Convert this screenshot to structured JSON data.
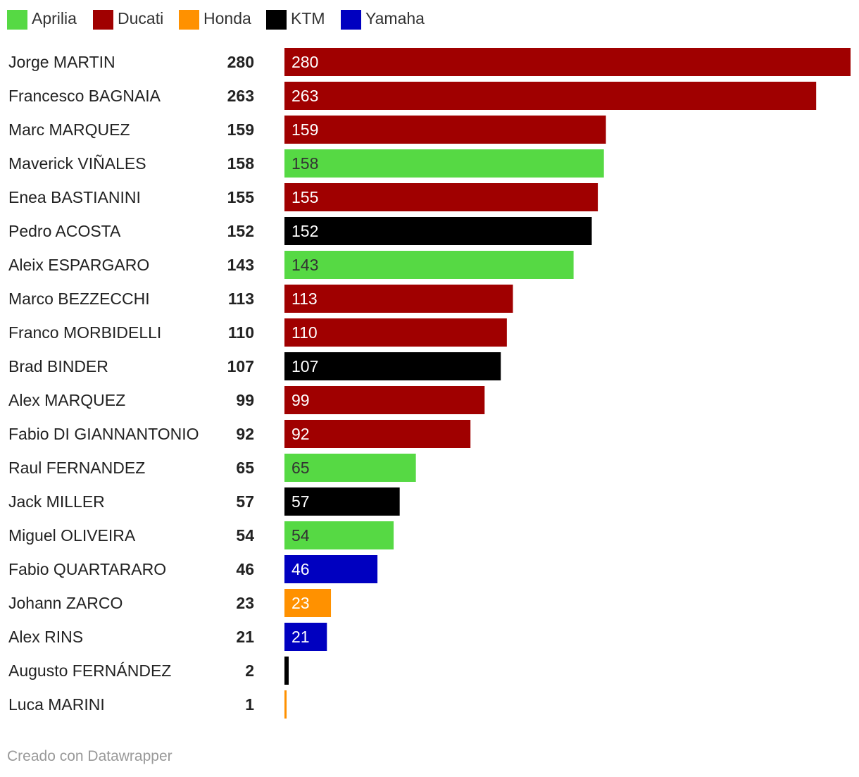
{
  "chart_data": {
    "type": "bar",
    "orientation": "horizontal",
    "legend_position": "top-left",
    "legend": [
      {
        "name": "Aprilia",
        "color": "#56d944"
      },
      {
        "name": "Ducati",
        "color": "#a00000"
      },
      {
        "name": "Honda",
        "color": "#ff9100"
      },
      {
        "name": "KTM",
        "color": "#000000"
      },
      {
        "name": "Yamaha",
        "color": "#0000c0"
      }
    ],
    "categories": [
      "Jorge MARTIN",
      "Francesco BAGNAIA",
      "Marc MARQUEZ",
      "Maverick VIÑALES",
      "Enea BASTIANINI",
      "Pedro ACOSTA",
      "Aleix ESPARGARO",
      "Marco BEZZECCHI",
      "Franco MORBIDELLI",
      "Brad BINDER",
      "Alex MARQUEZ",
      "Fabio DI GIANNANTONIO",
      "Raul FERNANDEZ",
      "Jack MILLER",
      "Miguel OLIVEIRA",
      "Fabio QUARTARARO",
      "Johann ZARCO",
      "Alex RINS",
      "Augusto FERNÁNDEZ",
      "Luca MARINI"
    ],
    "values": [
      280,
      263,
      159,
      158,
      155,
      152,
      143,
      113,
      110,
      107,
      99,
      92,
      65,
      57,
      54,
      46,
      23,
      21,
      2,
      1
    ],
    "teams": [
      "Ducati",
      "Ducati",
      "Ducati",
      "Aprilia",
      "Ducati",
      "KTM",
      "Aprilia",
      "Ducati",
      "Ducati",
      "KTM",
      "Ducati",
      "Ducati",
      "Aprilia",
      "KTM",
      "Aprilia",
      "Yamaha",
      "Honda",
      "Yamaha",
      "KTM",
      "Honda"
    ],
    "xlim": [
      0,
      280
    ],
    "grid": false
  },
  "footer": {
    "credit": "Creado con Datawrapper"
  }
}
